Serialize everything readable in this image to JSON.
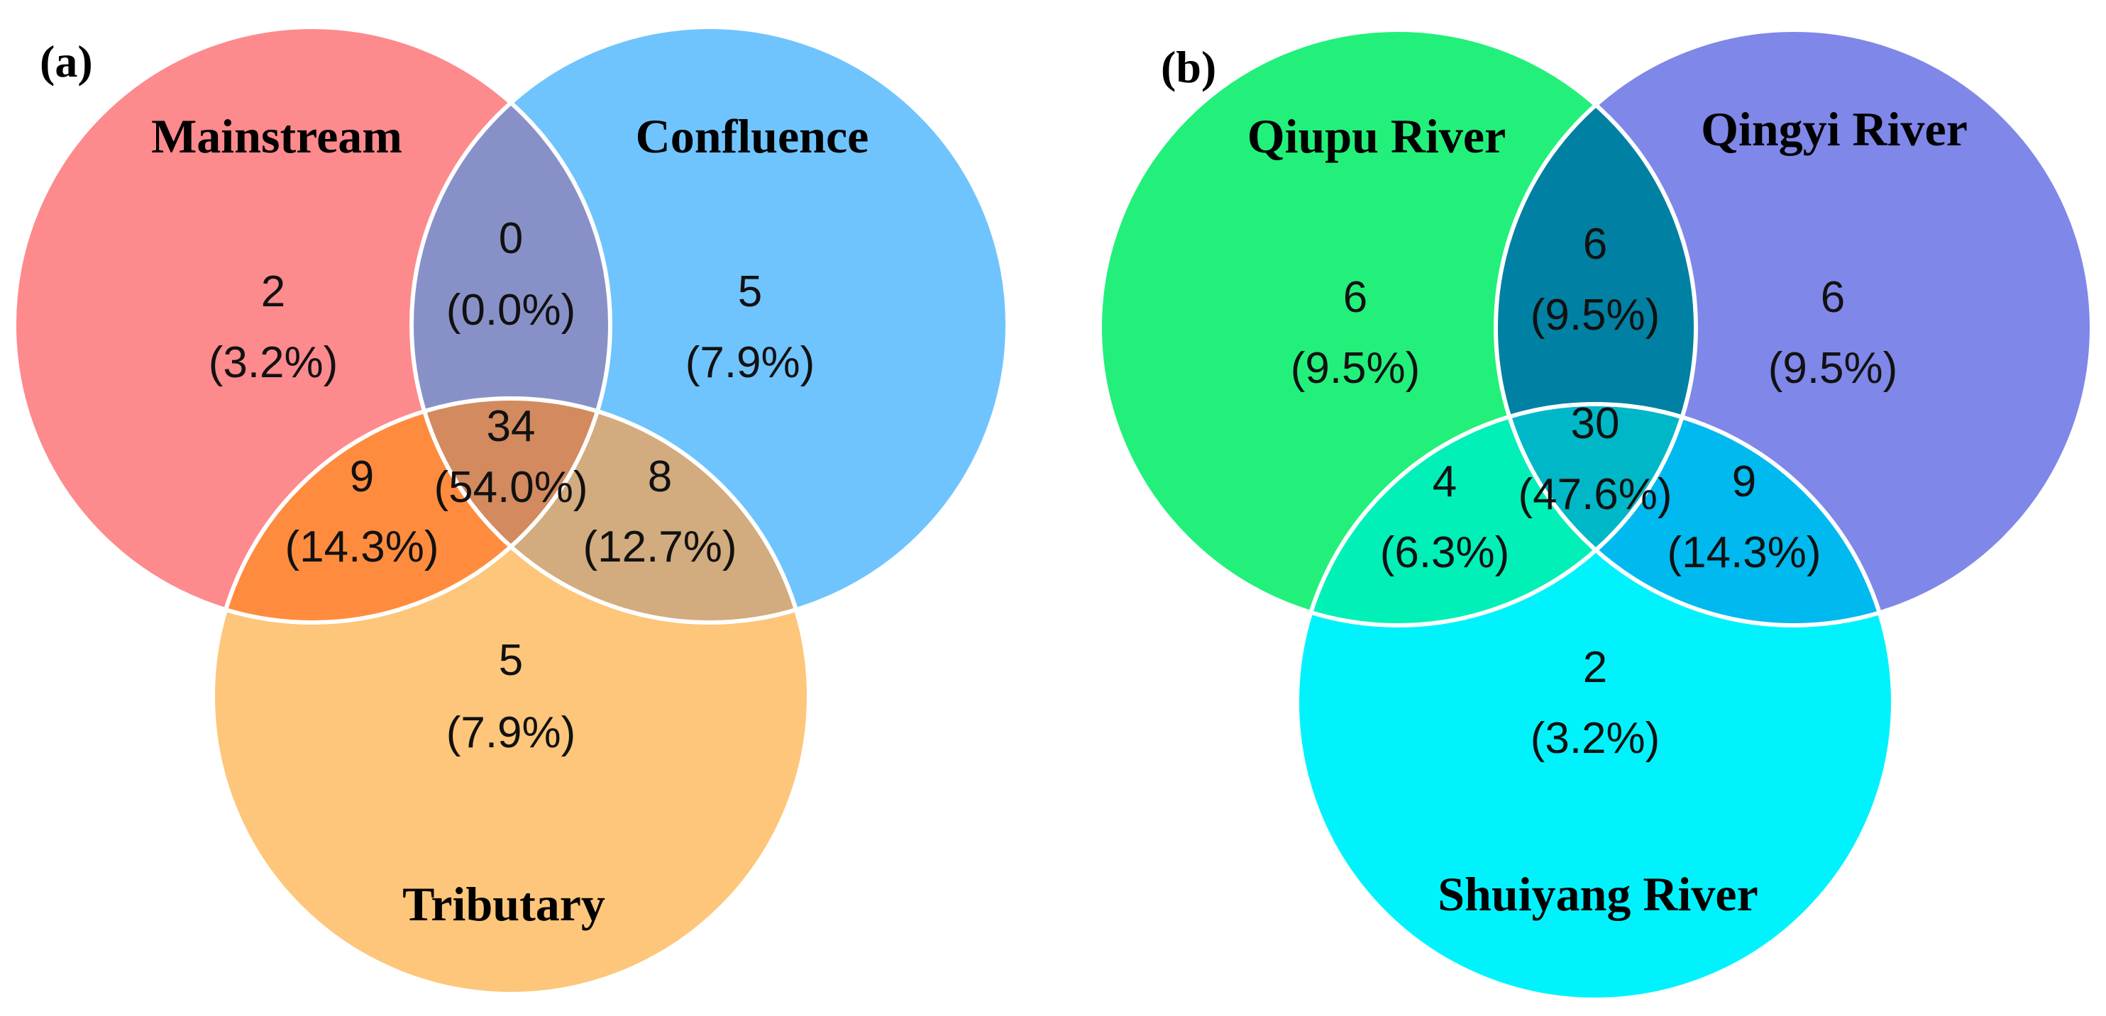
{
  "panels": [
    {
      "label": "(a)",
      "sets": [
        {
          "name": "Mainstream",
          "color": "#fd8a8d"
        },
        {
          "name": "Confluence",
          "color": "#6fc4fd"
        },
        {
          "name": "Tributary",
          "color": "#fdc67a"
        }
      ],
      "region_colors": {
        "ab": "#8891c7",
        "ac": "#ff8c3e",
        "bc": "#d2ab7e",
        "abc": "#d28a5e"
      },
      "regions": {
        "a": {
          "count": "2",
          "percent": "(3.2%)"
        },
        "b": {
          "count": "5",
          "percent": "(7.9%)"
        },
        "c": {
          "count": "5",
          "percent": "(7.9%)"
        },
        "ab": {
          "count": "0",
          "percent": "(0.0%)"
        },
        "ac": {
          "count": "9",
          "percent": "(14.3%)"
        },
        "bc": {
          "count": "8",
          "percent": "(12.7%)"
        },
        "abc": {
          "count": "34",
          "percent": "(54.0%)"
        }
      }
    },
    {
      "label": "(b)",
      "sets": [
        {
          "name": "Qiupu River",
          "color": "#22f07a"
        },
        {
          "name": "Qingyi River",
          "color": "#7f87e8"
        },
        {
          "name": "Shuiyang River",
          "color": "#00f3fd"
        }
      ],
      "region_colors": {
        "ab": "#0080a2",
        "ac": "#00f0b8",
        "bc": "#00b9ef",
        "abc": "#00b7c7"
      },
      "regions": {
        "a": {
          "count": "6",
          "percent": "(9.5%)"
        },
        "b": {
          "count": "6",
          "percent": "(9.5%)"
        },
        "c": {
          "count": "2",
          "percent": "(3.2%)"
        },
        "ab": {
          "count": "6",
          "percent": "(9.5%)"
        },
        "ac": {
          "count": "4",
          "percent": "(6.3%)"
        },
        "bc": {
          "count": "9",
          "percent": "(14.3%)"
        },
        "abc": {
          "count": "30",
          "percent": "(47.6%)"
        }
      }
    }
  ]
}
